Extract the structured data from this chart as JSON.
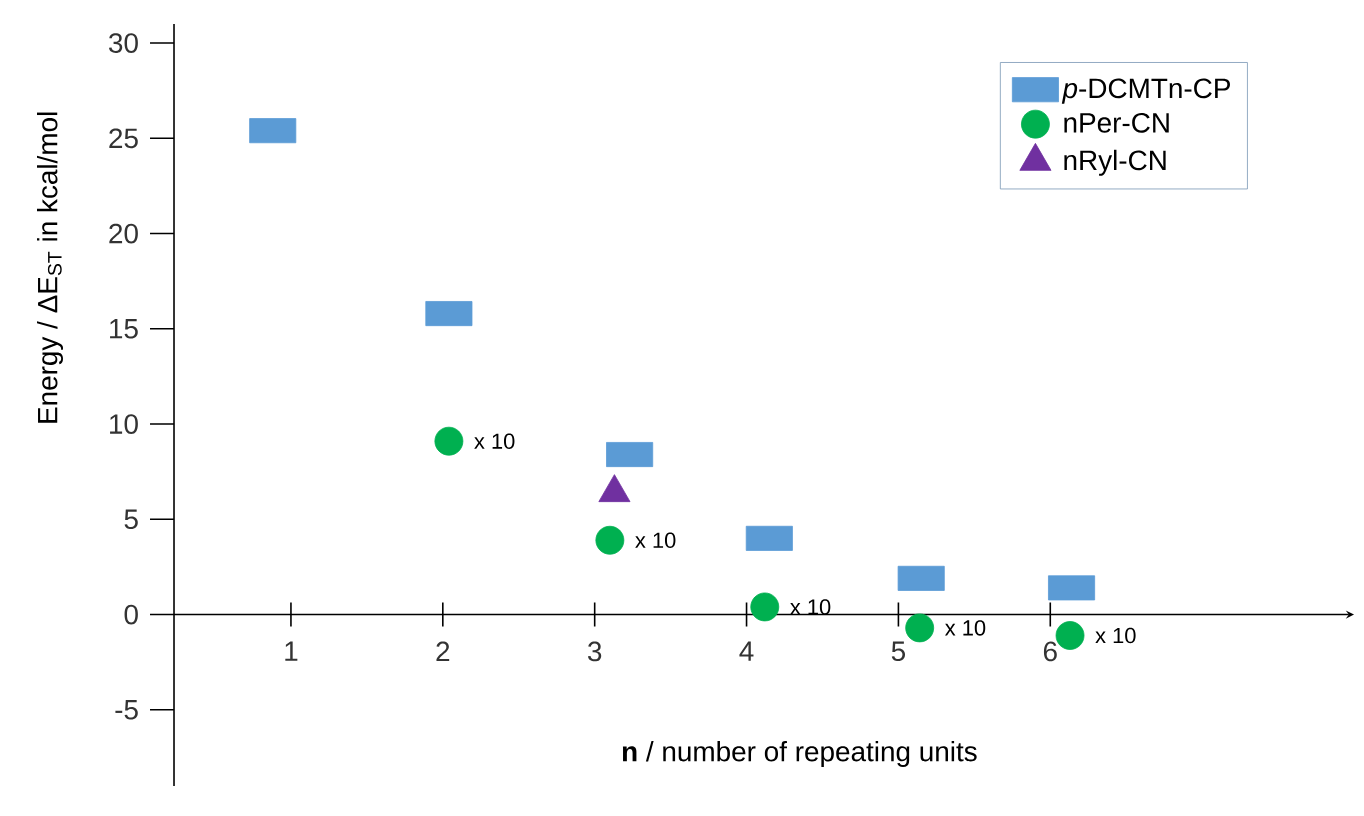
{
  "chart_data": {
    "type": "scatter",
    "xlabel": "**n** / number of repeating units",
    "ylabel": "Energy / ΔE$_{ST}$ in kcal/mol",
    "xlim": [
      0.23,
      8.0
    ],
    "ylim": [
      -9,
      31
    ],
    "xticks": [
      1,
      2,
      3,
      4,
      5,
      6
    ],
    "yticks": [
      -5,
      0,
      5,
      10,
      15,
      20,
      25,
      30
    ],
    "legend": "top right",
    "grid": false,
    "series": [
      {
        "name": "*p*-DCMTn-CP",
        "color": "#5b9bd5",
        "marker": "square",
        "x": [
          0.88,
          2.04,
          3.23,
          4.15,
          5.15,
          6.14
        ],
        "values": [
          25.4,
          15.8,
          8.4,
          4.0,
          1.9,
          1.4
        ]
      },
      {
        "name": "nPer-CN",
        "color": "#00b050",
        "marker": "circle",
        "x": [
          2.04,
          3.1,
          4.12,
          5.14,
          6.13
        ],
        "values": [
          9.1,
          3.9,
          0.4,
          -0.7,
          -1.1
        ]
      },
      {
        "name": "nRyl-CN",
        "color": "#7030a0",
        "marker": "triangle",
        "x": [
          3.13
        ],
        "values": [
          6.4
        ]
      }
    ],
    "annotations": [
      {
        "text": "x 10",
        "x": 2.04,
        "y": 9.1
      },
      {
        "text": "x 10",
        "x": 3.1,
        "y": 3.9
      },
      {
        "text": "x 10",
        "x": 4.12,
        "y": 0.4
      },
      {
        "text": "x 10",
        "x": 5.14,
        "y": -0.7
      },
      {
        "text": "x 10",
        "x": 6.13,
        "y": -1.1
      }
    ]
  }
}
